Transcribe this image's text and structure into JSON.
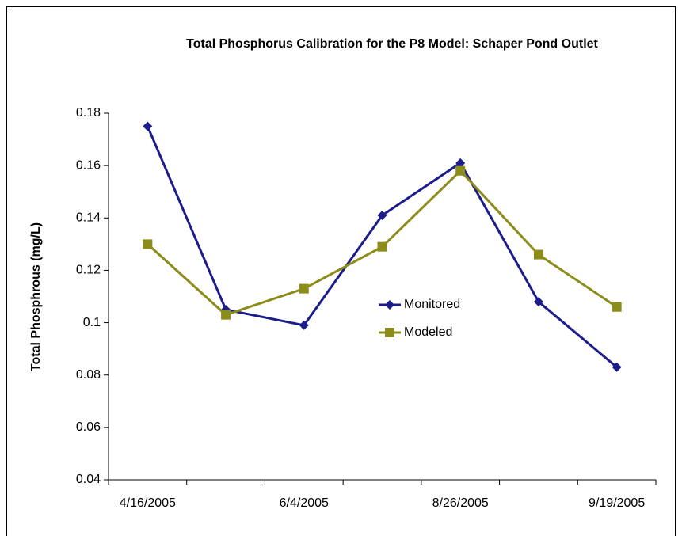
{
  "chart_data": {
    "type": "line",
    "title": "Total Phosphorus Calibration for the P8 Model: Schaper Pond Outlet",
    "y_label": "Total Phosphrous (mg/L)",
    "categories": [
      "4/16/2005",
      null,
      "6/4/2005",
      null,
      "8/26/2005",
      null,
      "9/19/2005"
    ],
    "series": [
      {
        "name": "Monitored",
        "color": "#1c1c8a",
        "marker": "diamond",
        "values": [
          0.175,
          0.105,
          0.099,
          0.141,
          0.161,
          0.108,
          0.083
        ]
      },
      {
        "name": "Modeled",
        "color": "#8c8c1a",
        "marker": "square",
        "values": [
          0.13,
          0.103,
          0.113,
          0.129,
          0.158,
          0.126,
          0.106
        ]
      }
    ],
    "ylim": [
      0.04,
      0.18
    ],
    "yticks": [
      0.04,
      0.06,
      0.08,
      0.1,
      0.12,
      0.14,
      0.16,
      0.18
    ],
    "grid": false,
    "legend": "inside-center-right"
  }
}
